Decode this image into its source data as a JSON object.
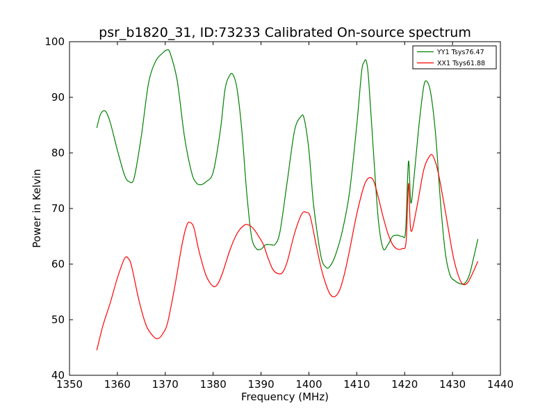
{
  "chart_data": {
    "type": "line",
    "title": "psr_b1820_31, ID:73233 Calibrated On-source spectrum",
    "xlabel": "Frequency (MHz)",
    "ylabel": "Power in Kelvin",
    "xlim": [
      1350,
      1440
    ],
    "ylim": [
      40,
      100
    ],
    "xticks": [
      "1350",
      "1360",
      "1370",
      "1380",
      "1390",
      "1400",
      "1410",
      "1420",
      "1430",
      "1440"
    ],
    "yticks": [
      "40",
      "50",
      "60",
      "70",
      "80",
      "90",
      "100"
    ],
    "grid": false,
    "legend_position": "top-right",
    "series": [
      {
        "name": "YY1 Tsys76.47",
        "color": "#008000",
        "x": [
          1355.7,
          1356.5,
          1357.5,
          1358.5,
          1360.0,
          1361.5,
          1362.5,
          1363.5,
          1365.0,
          1366.5,
          1368.0,
          1369.5,
          1370.3,
          1371.0,
          1372.5,
          1374.0,
          1375.5,
          1376.5,
          1377.5,
          1378.5,
          1380.0,
          1381.5,
          1382.5,
          1383.5,
          1384.2,
          1385.0,
          1386.0,
          1387.0,
          1388.0,
          1389.0,
          1390.0,
          1391.0,
          1392.0,
          1393.0,
          1394.0,
          1395.5,
          1397.0,
          1398.3,
          1399.0,
          1400.0,
          1401.0,
          1402.5,
          1403.5,
          1404.3,
          1405.5,
          1407.0,
          1408.5,
          1410.0,
          1411.0,
          1411.5,
          1412.0,
          1412.5,
          1413.5,
          1414.5,
          1415.5,
          1416.5,
          1417.5,
          1418.5,
          1419.5,
          1420.2,
          1420.8,
          1421.3,
          1422.0,
          1423.0,
          1424.0,
          1424.7,
          1425.5,
          1426.5,
          1427.5,
          1428.5,
          1429.5,
          1430.5,
          1431.5,
          1432.5,
          1433.5,
          1434.5,
          1435.3
        ],
        "y": [
          84.5,
          87.0,
          87.5,
          85.5,
          80.5,
          76.0,
          74.8,
          75.5,
          83.0,
          92.5,
          96.5,
          98.0,
          98.5,
          98.0,
          93.0,
          83.0,
          76.5,
          74.6,
          74.3,
          74.8,
          76.5,
          84.0,
          91.5,
          94.0,
          94.0,
          91.5,
          84.0,
          73.0,
          65.0,
          62.8,
          62.7,
          63.5,
          63.5,
          63.6,
          66.0,
          75.0,
          84.0,
          86.5,
          86.2,
          80.5,
          70.5,
          61.5,
          59.5,
          59.5,
          61.5,
          66.0,
          73.0,
          85.0,
          94.5,
          96.3,
          96.5,
          93.0,
          80.0,
          68.0,
          62.8,
          63.5,
          65.0,
          65.2,
          65.0,
          66.0,
          78.5,
          71.0,
          76.0,
          85.0,
          92.0,
          92.8,
          90.5,
          83.0,
          71.0,
          62.0,
          58.0,
          57.0,
          56.5,
          56.5,
          58.0,
          61.5,
          64.5
        ]
      },
      {
        "name": "XX1 Tsys61.88",
        "color": "#ff0000",
        "x": [
          1355.7,
          1357.0,
          1358.5,
          1360.0,
          1361.5,
          1362.3,
          1363.0,
          1364.5,
          1366.0,
          1367.5,
          1368.5,
          1369.5,
          1370.5,
          1372.0,
          1373.5,
          1374.5,
          1375.2,
          1376.0,
          1377.0,
          1378.5,
          1380.0,
          1381.0,
          1382.0,
          1383.5,
          1385.0,
          1386.5,
          1387.5,
          1388.5,
          1389.5,
          1390.5,
          1391.5,
          1392.5,
          1393.5,
          1394.5,
          1395.5,
          1397.0,
          1398.5,
          1399.5,
          1400.3,
          1401.5,
          1402.5,
          1403.5,
          1404.5,
          1405.5,
          1406.5,
          1407.5,
          1408.5,
          1410.0,
          1411.5,
          1412.5,
          1413.5,
          1414.5,
          1415.5,
          1416.5,
          1417.5,
          1418.5,
          1419.5,
          1420.3,
          1420.8,
          1421.3,
          1422.5,
          1424.0,
          1425.3,
          1426.0,
          1427.0,
          1428.5,
          1430.0,
          1431.0,
          1432.0,
          1433.0,
          1434.0,
          1435.3
        ],
        "y": [
          44.5,
          49.0,
          53.0,
          57.5,
          61.0,
          61.0,
          59.5,
          53.5,
          49.0,
          47.0,
          46.6,
          47.5,
          49.5,
          56.0,
          63.5,
          67.0,
          67.5,
          66.5,
          62.5,
          58.0,
          56.0,
          56.5,
          58.5,
          62.5,
          65.5,
          67.0,
          67.0,
          66.3,
          65.0,
          63.5,
          61.0,
          59.0,
          58.3,
          58.5,
          60.5,
          65.5,
          69.0,
          69.3,
          68.5,
          63.5,
          59.5,
          56.5,
          54.5,
          54.2,
          55.5,
          58.5,
          62.5,
          69.0,
          74.0,
          75.5,
          75.0,
          72.0,
          68.5,
          65.5,
          63.5,
          62.7,
          62.8,
          64.0,
          74.5,
          66.0,
          70.0,
          77.0,
          79.5,
          79.3,
          76.5,
          69.5,
          62.0,
          58.5,
          56.5,
          56.5,
          58.0,
          60.5
        ]
      }
    ]
  }
}
